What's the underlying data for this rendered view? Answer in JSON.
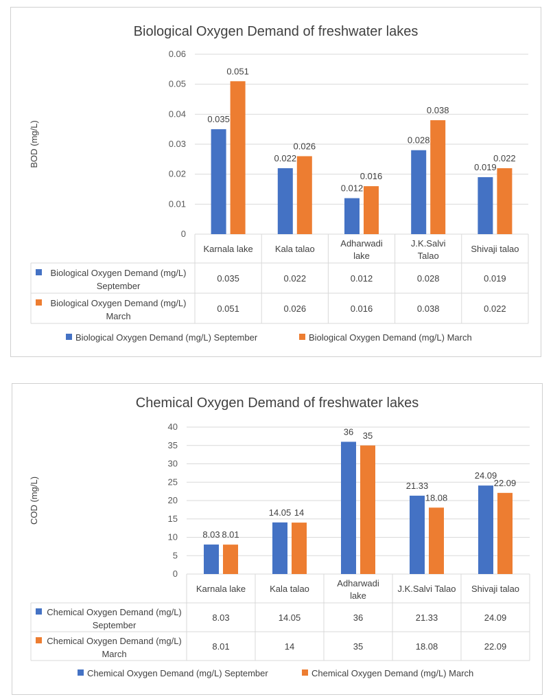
{
  "chart_data": [
    {
      "type": "bar",
      "title": "Biological Oxygen Demand of freshwater lakes",
      "ylabel": "BOD (mg/L)",
      "xlabel": "",
      "ylim": [
        0,
        0.06
      ],
      "yticks": [
        "0",
        "0.01",
        "0.02",
        "0.03",
        "0.04",
        "0.05",
        "0.06"
      ],
      "grid": true,
      "legend": "bottom",
      "data_table": true,
      "categories": [
        "Karnala lake",
        "Kala talao",
        "Adharwadi lake",
        "J.K.Salvi Talao",
        "Shivaji talao"
      ],
      "series": [
        {
          "name": "Biological Oxygen Demand (mg/L) September",
          "color": "#4472c4",
          "values": [
            0.035,
            0.022,
            0.012,
            0.028,
            0.019
          ],
          "labels": [
            "0.035",
            "0.022",
            "0.012",
            "0.028",
            "0.019"
          ]
        },
        {
          "name": "Biological Oxygen Demand (mg/L) March",
          "color": "#ed7d31",
          "values": [
            0.051,
            0.026,
            0.016,
            0.038,
            0.022
          ],
          "labels": [
            "0.051",
            "0.026",
            "0.016",
            "0.038",
            "0.022"
          ]
        }
      ]
    },
    {
      "type": "bar",
      "title": "Chemical Oxygen Demand of freshwater lakes",
      "ylabel": "COD (mg/L)",
      "xlabel": "",
      "ylim": [
        0,
        40
      ],
      "yticks": [
        "0",
        "5",
        "10",
        "15",
        "20",
        "25",
        "30",
        "35",
        "40"
      ],
      "grid": true,
      "legend": "bottom",
      "data_table": true,
      "categories": [
        "Karnala lake",
        "Kala talao",
        "Adharwadi lake",
        "J.K.Salvi Talao",
        "Shivaji talao"
      ],
      "series": [
        {
          "name": "Chemical Oxygen Demand (mg/L) September",
          "color": "#4472c4",
          "values": [
            8.03,
            14.05,
            36,
            21.33,
            24.09
          ],
          "labels": [
            "8.03",
            "14.05",
            "36",
            "21.33",
            "24.09"
          ]
        },
        {
          "name": "Chemical Oxygen Demand (mg/L) March",
          "color": "#ed7d31",
          "values": [
            8.01,
            14,
            35,
            18.08,
            22.09
          ],
          "labels": [
            "8.01",
            "14",
            "35",
            "18.08",
            "22.09"
          ]
        }
      ]
    }
  ]
}
